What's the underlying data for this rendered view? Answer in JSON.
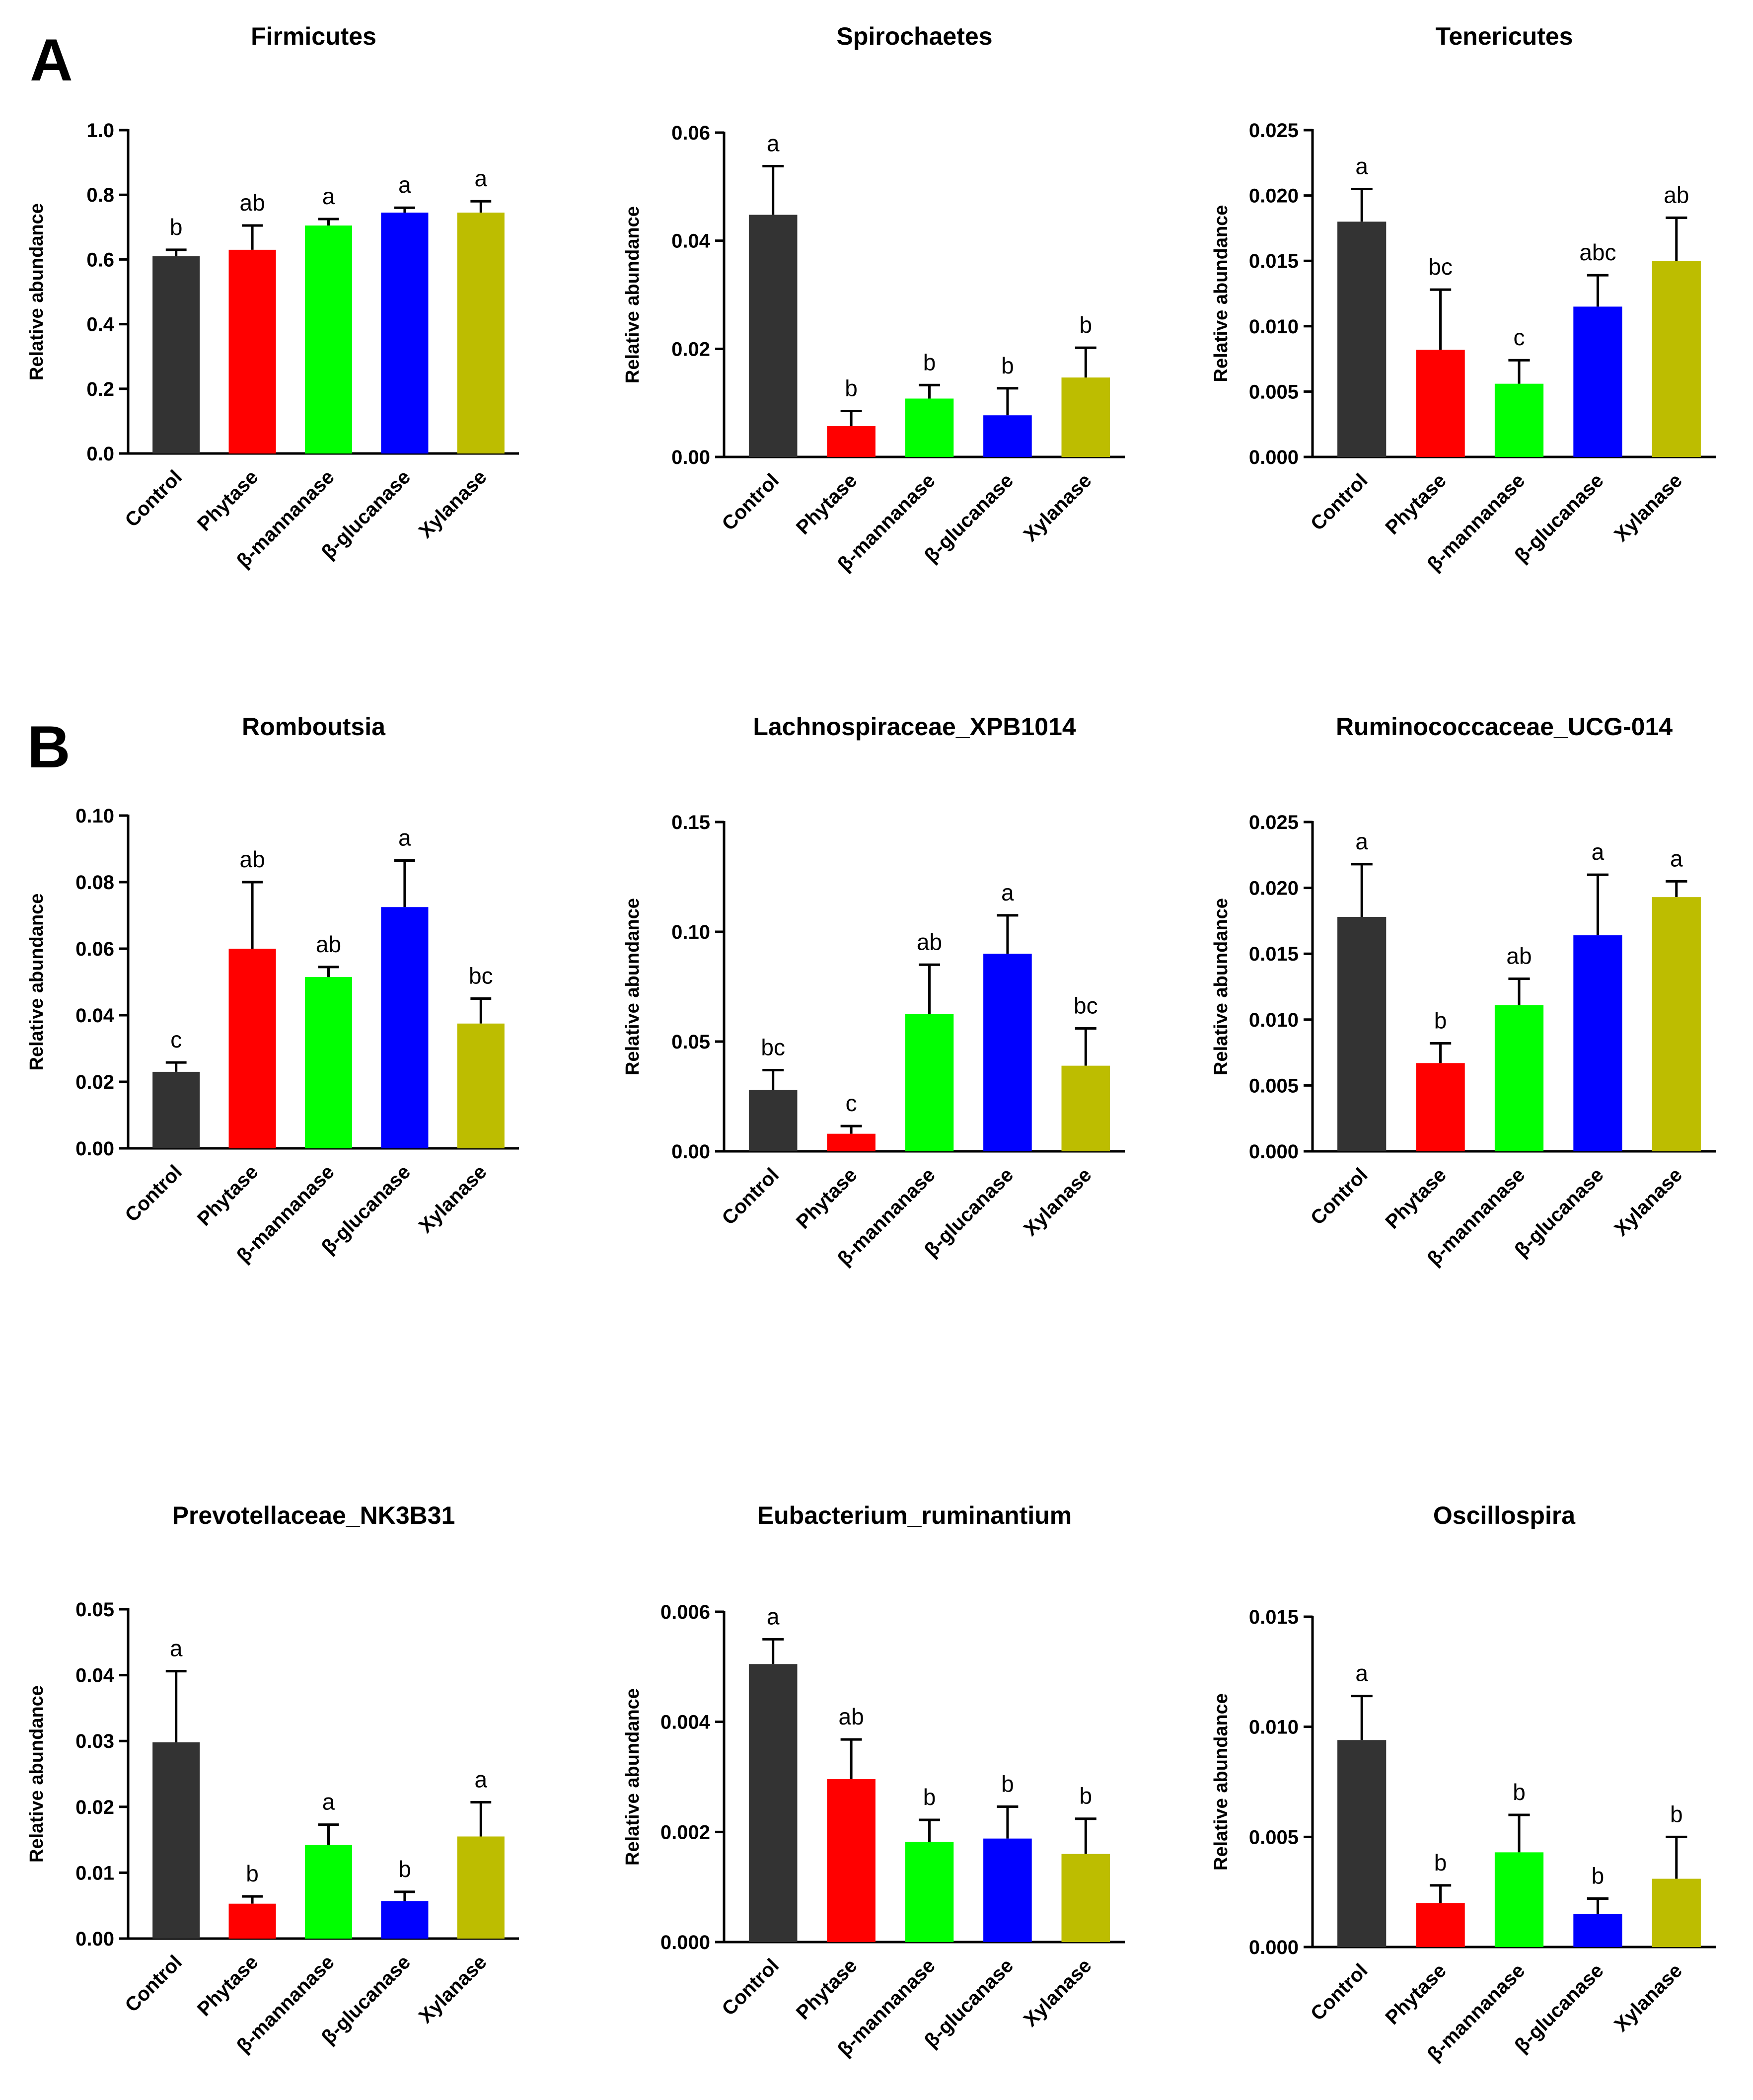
{
  "figure": {
    "panels": [
      {
        "letter": "A"
      },
      {
        "letter": "B"
      }
    ]
  },
  "colors": {
    "Control": "#333333",
    "Phytase": "#ff0000",
    "β-mannanase": "#00ff00",
    "β-glucanase": "#0000ff",
    "Xylanase": "#bdbd00"
  },
  "chart_data": [
    {
      "type": "bar",
      "title": "Firmicutes",
      "ylabel": "Relative abundance",
      "xlabel": "",
      "categories": [
        "Control",
        "Phytase",
        "β-mannanase",
        "β-glucanase",
        "Xylanase"
      ],
      "values": [
        0.61,
        0.63,
        0.705,
        0.745,
        0.745
      ],
      "errors": [
        0.02,
        0.075,
        0.02,
        0.015,
        0.035
      ],
      "significance": [
        "b",
        "ab",
        "a",
        "a",
        "a"
      ],
      "ylim": [
        0,
        1.0
      ],
      "yticks": [
        0.0,
        0.2,
        0.4,
        0.6,
        0.8,
        1.0
      ],
      "ytick_labels": [
        "0.0",
        "0.2",
        "0.4",
        "0.6",
        "0.8",
        "1.0"
      ]
    },
    {
      "type": "bar",
      "title": "Spirochaetes",
      "ylabel": "Relative abundance",
      "xlabel": "",
      "categories": [
        "Control",
        "Phytase",
        "β-mannanase",
        "β-glucanase",
        "Xylanase"
      ],
      "values": [
        0.0448,
        0.0057,
        0.0108,
        0.0077,
        0.0147
      ],
      "errors": [
        0.009,
        0.0028,
        0.0025,
        0.005,
        0.0055
      ],
      "significance": [
        "a",
        "b",
        "b",
        "b",
        "b"
      ],
      "ylim": [
        0,
        0.06
      ],
      "yticks": [
        0.0,
        0.02,
        0.04,
        0.06
      ],
      "ytick_labels": [
        "0.00",
        "0.02",
        "0.04",
        "0.06"
      ]
    },
    {
      "type": "bar",
      "title": "Tenericutes",
      "ylabel": "Relative abundance",
      "xlabel": "",
      "categories": [
        "Control",
        "Phytase",
        "β-mannanase",
        "β-glucanase",
        "Xylanase"
      ],
      "values": [
        0.018,
        0.0082,
        0.0056,
        0.0115,
        0.015
      ],
      "errors": [
        0.0025,
        0.0046,
        0.0018,
        0.0024,
        0.0033
      ],
      "significance": [
        "a",
        "bc",
        "c",
        "abc",
        "ab"
      ],
      "ylim": [
        0,
        0.025
      ],
      "yticks": [
        0.0,
        0.005,
        0.01,
        0.015,
        0.02,
        0.025
      ],
      "ytick_labels": [
        "0.000",
        "0.005",
        "0.010",
        "0.015",
        "0.020",
        "0.025"
      ]
    },
    {
      "type": "bar",
      "title": "Romboutsia",
      "ylabel": "Relative abundance",
      "xlabel": "",
      "categories": [
        "Control",
        "Phytase",
        "β-mannanase",
        "β-glucanase",
        "Xylanase"
      ],
      "values": [
        0.023,
        0.06,
        0.0515,
        0.0725,
        0.0375
      ],
      "errors": [
        0.0028,
        0.02,
        0.003,
        0.014,
        0.0075
      ],
      "significance": [
        "c",
        "ab",
        "ab",
        "a",
        "bc"
      ],
      "ylim": [
        0,
        0.1
      ],
      "yticks": [
        0.0,
        0.02,
        0.04,
        0.06,
        0.08,
        0.1
      ],
      "ytick_labels": [
        "0.00",
        "0.02",
        "0.04",
        "0.06",
        "0.08",
        "0.10"
      ]
    },
    {
      "type": "bar",
      "title": "Lachnospiraceae_XPB1014",
      "ylabel": "Relative abundance",
      "xlabel": "",
      "categories": [
        "Control",
        "Phytase",
        "β-mannanase",
        "β-glucanase",
        "Xylanase"
      ],
      "values": [
        0.028,
        0.008,
        0.0625,
        0.09,
        0.039
      ],
      "errors": [
        0.009,
        0.0035,
        0.0225,
        0.0175,
        0.017
      ],
      "significance": [
        "bc",
        "c",
        "ab",
        "a",
        "bc"
      ],
      "ylim": [
        0,
        0.15
      ],
      "yticks": [
        0.0,
        0.05,
        0.1,
        0.15
      ],
      "ytick_labels": [
        "0.00",
        "0.05",
        "0.10",
        "0.15"
      ]
    },
    {
      "type": "bar",
      "title": "Ruminococcaceae_UCG-014",
      "ylabel": "Relative abundance",
      "xlabel": "",
      "categories": [
        "Control",
        "Phytase",
        "β-mannanase",
        "β-glucanase",
        "Xylanase"
      ],
      "values": [
        0.0178,
        0.0067,
        0.0111,
        0.0164,
        0.0193
      ],
      "errors": [
        0.004,
        0.0015,
        0.002,
        0.0046,
        0.0012
      ],
      "significance": [
        "a",
        "b",
        "ab",
        "a",
        "a"
      ],
      "ylim": [
        0,
        0.025
      ],
      "yticks": [
        0.0,
        0.005,
        0.01,
        0.015,
        0.02,
        0.025
      ],
      "ytick_labels": [
        "0.000",
        "0.005",
        "0.010",
        "0.015",
        "0.020",
        "0.025"
      ]
    },
    {
      "type": "bar",
      "title": "Prevotellaceae_NK3B31",
      "ylabel": "Relative abundance",
      "xlabel": "",
      "categories": [
        "Control",
        "Phytase",
        "β-mannanase",
        "β-glucanase",
        "Xylanase"
      ],
      "values": [
        0.0298,
        0.0053,
        0.0142,
        0.0057,
        0.0155
      ],
      "errors": [
        0.0108,
        0.0011,
        0.0031,
        0.0014,
        0.0052
      ],
      "significance": [
        "a",
        "b",
        "a",
        "b",
        "a"
      ],
      "ylim": [
        0,
        0.05
      ],
      "yticks": [
        0.0,
        0.01,
        0.02,
        0.03,
        0.04,
        0.05
      ],
      "ytick_labels": [
        "0.00",
        "0.01",
        "0.02",
        "0.03",
        "0.04",
        "0.05"
      ]
    },
    {
      "type": "bar",
      "title": "Eubacterium_ruminantium",
      "ylabel": "Relative abundance",
      "xlabel": "",
      "categories": [
        "Control",
        "Phytase",
        "β-mannanase",
        "β-glucanase",
        "Xylanase"
      ],
      "values": [
        0.00505,
        0.00296,
        0.00182,
        0.00188,
        0.0016
      ],
      "errors": [
        0.00045,
        0.00072,
        0.0004,
        0.00058,
        0.00064
      ],
      "significance": [
        "a",
        "ab",
        "b",
        "b",
        "b"
      ],
      "ylim": [
        0,
        0.006
      ],
      "yticks": [
        0.0,
        0.002,
        0.004,
        0.006
      ],
      "ytick_labels": [
        "0.000",
        "0.002",
        "0.004",
        "0.006"
      ]
    },
    {
      "type": "bar",
      "title": "Oscillospira",
      "ylabel": "Relative abundance",
      "xlabel": "",
      "categories": [
        "Control",
        "Phytase",
        "β-mannanase",
        "β-glucanase",
        "Xylanase"
      ],
      "values": [
        0.0094,
        0.002,
        0.0043,
        0.0015,
        0.0031
      ],
      "errors": [
        0.002,
        0.0008,
        0.0017,
        0.0007,
        0.0019
      ],
      "significance": [
        "a",
        "b",
        "b",
        "b",
        "b"
      ],
      "ylim": [
        0,
        0.015
      ],
      "yticks": [
        0.0,
        0.005,
        0.01,
        0.015
      ],
      "ytick_labels": [
        "0.000",
        "0.005",
        "0.010",
        "0.015"
      ]
    }
  ]
}
